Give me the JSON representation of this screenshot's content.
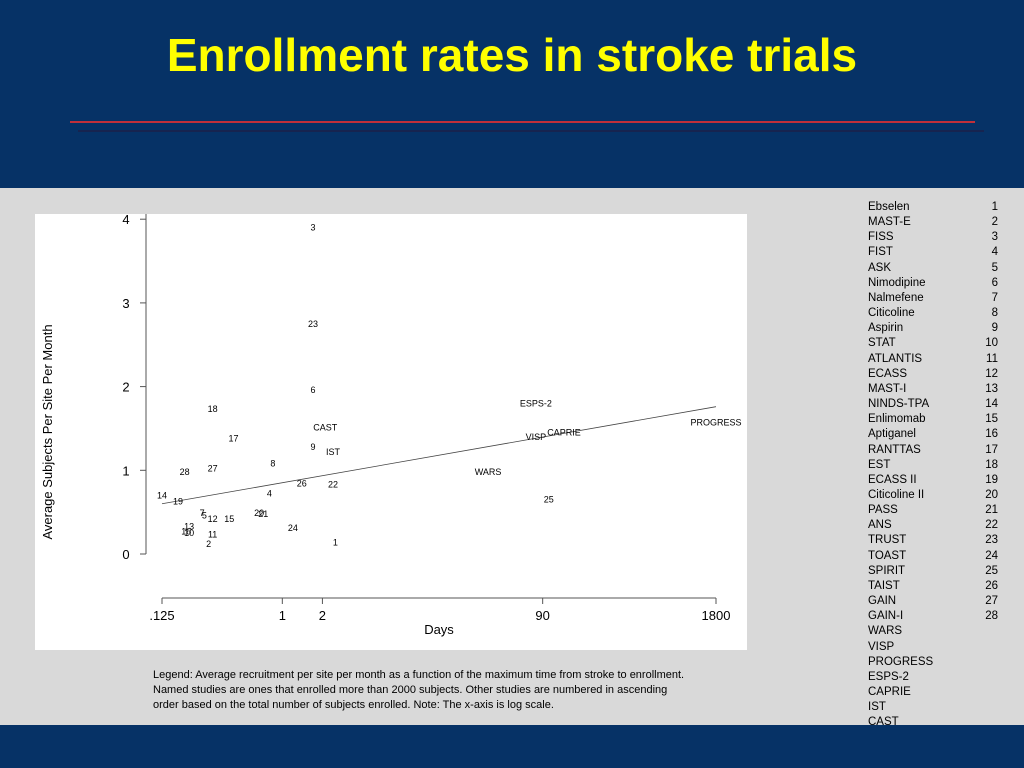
{
  "slide": {
    "title": "Enrollment rates in stroke trials",
    "colors": {
      "header": "#063266",
      "title": "#ffff00",
      "background": "#d9d9d9"
    }
  },
  "chart_data": {
    "type": "scatter",
    "title": "",
    "xlabel": "Days",
    "ylabel": "Average Subjects Per Site Per Month",
    "xscale": "log",
    "xticks": [
      {
        "value": 0.125,
        "label": ".125"
      },
      {
        "value": 1,
        "label": "1"
      },
      {
        "value": 2,
        "label": "2"
      },
      {
        "value": 90,
        "label": "90"
      },
      {
        "value": 1800,
        "label": "1800"
      }
    ],
    "yticks": [
      0,
      1,
      2,
      3,
      4
    ],
    "xlim": [
      0.1,
      1900
    ],
    "ylim": [
      0,
      4.1
    ],
    "grid": false,
    "points": [
      {
        "label": "1",
        "x": 2.5,
        "y": 0.14
      },
      {
        "label": "2",
        "x": 0.28,
        "y": 0.12
      },
      {
        "label": "3",
        "x": 1.7,
        "y": 3.9
      },
      {
        "label": "4",
        "x": 0.8,
        "y": 0.72
      },
      {
        "label": "5",
        "x": 0.26,
        "y": 0.46
      },
      {
        "label": "6",
        "x": 1.7,
        "y": 1.96
      },
      {
        "label": "7",
        "x": 0.25,
        "y": 0.49
      },
      {
        "label": "8",
        "x": 0.85,
        "y": 1.08
      },
      {
        "label": "9",
        "x": 1.7,
        "y": 1.28
      },
      {
        "label": "10",
        "x": 0.2,
        "y": 0.25
      },
      {
        "label": "11",
        "x": 0.3,
        "y": 0.23
      },
      {
        "label": "12",
        "x": 0.3,
        "y": 0.42
      },
      {
        "label": "13",
        "x": 0.2,
        "y": 0.33
      },
      {
        "label": "14",
        "x": 0.125,
        "y": 0.7
      },
      {
        "label": "15",
        "x": 0.4,
        "y": 0.42
      },
      {
        "label": "16",
        "x": 0.19,
        "y": 0.27
      },
      {
        "label": "17",
        "x": 0.43,
        "y": 1.38
      },
      {
        "label": "18",
        "x": 0.3,
        "y": 1.73
      },
      {
        "label": "19",
        "x": 0.165,
        "y": 0.63
      },
      {
        "label": "20",
        "x": 0.67,
        "y": 0.49
      },
      {
        "label": "21",
        "x": 0.72,
        "y": 0.48
      },
      {
        "label": "22",
        "x": 2.4,
        "y": 0.83
      },
      {
        "label": "23",
        "x": 1.7,
        "y": 2.75
      },
      {
        "label": "24",
        "x": 1.2,
        "y": 0.31
      },
      {
        "label": "25",
        "x": 100,
        "y": 0.65
      },
      {
        "label": "26",
        "x": 1.4,
        "y": 0.84
      },
      {
        "label": "27",
        "x": 0.3,
        "y": 1.02
      },
      {
        "label": "28",
        "x": 0.185,
        "y": 0.98
      },
      {
        "label": "CAST",
        "x": 2.1,
        "y": 1.51
      },
      {
        "label": "IST",
        "x": 2.4,
        "y": 1.22
      },
      {
        "label": "WARS",
        "x": 35,
        "y": 0.98
      },
      {
        "label": "ESPS-2",
        "x": 80,
        "y": 1.8
      },
      {
        "label": "VISP",
        "x": 80,
        "y": 1.4
      },
      {
        "label": "CAPRIE",
        "x": 130,
        "y": 1.45
      },
      {
        "label": "PROGRESS",
        "x": 1800,
        "y": 1.57
      }
    ],
    "fit_line": [
      {
        "x": 0.125,
        "y": 0.6
      },
      {
        "x": 1800,
        "y": 1.76
      }
    ]
  },
  "legend": {
    "numbered": [
      {
        "name": "Ebselen",
        "num": "1"
      },
      {
        "name": "MAST-E",
        "num": "2"
      },
      {
        "name": "FISS",
        "num": "3"
      },
      {
        "name": "FIST",
        "num": "4"
      },
      {
        "name": "ASK",
        "num": "5"
      },
      {
        "name": "Nimodipine",
        "num": "6"
      },
      {
        "name": "Nalmefene",
        "num": "7"
      },
      {
        "name": "Citicoline",
        "num": "8"
      },
      {
        "name": "Aspirin",
        "num": "9"
      },
      {
        "name": "STAT",
        "num": "10"
      },
      {
        "name": "ATLANTIS",
        "num": "11"
      },
      {
        "name": "ECASS",
        "num": "12"
      },
      {
        "name": "MAST-I",
        "num": "13"
      },
      {
        "name": "NINDS-TPA",
        "num": "14"
      },
      {
        "name": "Enlimomab",
        "num": "15"
      },
      {
        "name": "Aptiganel",
        "num": "16"
      },
      {
        "name": "RANTTAS",
        "num": "17"
      },
      {
        "name": "EST",
        "num": "18"
      },
      {
        "name": "ECASS II",
        "num": "19"
      },
      {
        "name": "Citicoline II",
        "num": "20"
      },
      {
        "name": "PASS",
        "num": "21"
      },
      {
        "name": "ANS",
        "num": "22"
      },
      {
        "name": "TRUST",
        "num": "23"
      },
      {
        "name": "TOAST",
        "num": "24"
      },
      {
        "name": "SPIRIT",
        "num": "25"
      },
      {
        "name": "TAIST",
        "num": "26"
      },
      {
        "name": "GAIN",
        "num": "27"
      },
      {
        "name": "GAIN-I",
        "num": "28"
      }
    ],
    "named": [
      "WARS",
      "VISP",
      "PROGRESS",
      "ESPS-2",
      "CAPRIE",
      "IST",
      "CAST"
    ]
  },
  "caption": [
    "Legend:  Average recruitment per site per month as a function of the maximum time from stroke to enrollment.",
    "Named studies are ones that enrolled more than 2000 subjects.  Other studies are numbered in ascending",
    "order based on the total number of subjects enrolled.  Note: The x-axis is log scale."
  ]
}
